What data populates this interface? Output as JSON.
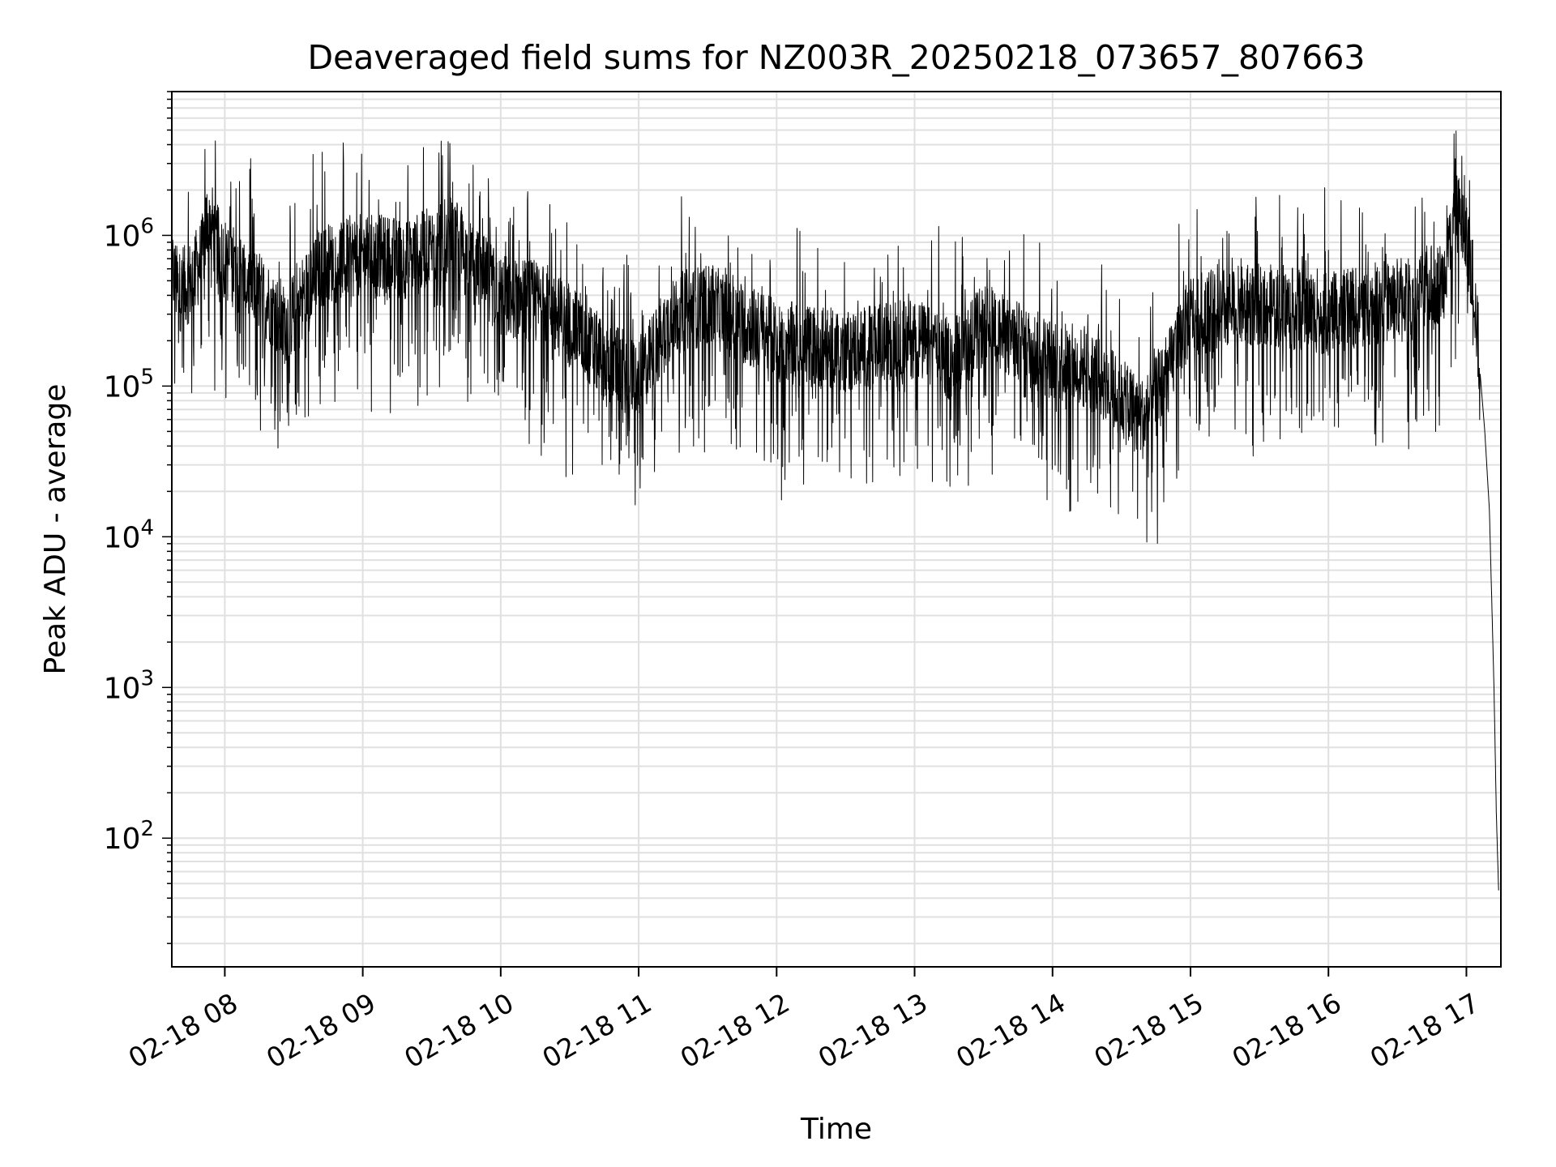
{
  "chart_data": {
    "type": "line",
    "title": "Deaveraged field sums for NZ003R_20250218_073657_807663",
    "xlabel": "Time",
    "ylabel": "Peak ADU - average",
    "yscale": "log",
    "ylim": [
      14,
      9000000
    ],
    "xlim": [
      "02-18 07:36:57",
      "02-18 17:15:00"
    ],
    "grid": true,
    "line_color": "#000000",
    "grid_color": "#e0e0e0",
    "x_ticks": [
      {
        "label": "02-18 08",
        "time": "02-18 08:00"
      },
      {
        "label": "02-18 09",
        "time": "02-18 09:00"
      },
      {
        "label": "02-18 10",
        "time": "02-18 10:00"
      },
      {
        "label": "02-18 11",
        "time": "02-18 11:00"
      },
      {
        "label": "02-18 12",
        "time": "02-18 12:00"
      },
      {
        "label": "02-18 13",
        "time": "02-18 13:00"
      },
      {
        "label": "02-18 14",
        "time": "02-18 14:00"
      },
      {
        "label": "02-18 15",
        "time": "02-18 15:00"
      },
      {
        "label": "02-18 16",
        "time": "02-18 16:00"
      },
      {
        "label": "02-18 17",
        "time": "02-18 17:00"
      }
    ],
    "y_ticks": [
      {
        "base": "10",
        "exp": "2",
        "value": 100
      },
      {
        "base": "10",
        "exp": "3",
        "value": 1000
      },
      {
        "base": "10",
        "exp": "4",
        "value": 10000
      },
      {
        "base": "10",
        "exp": "5",
        "value": 100000
      },
      {
        "base": "10",
        "exp": "6",
        "value": 1000000
      }
    ],
    "series": [
      {
        "x": [
          "02-18 07:36:57",
          "02-18 07:40",
          "02-18 07:45",
          "02-18 07:50",
          "02-18 07:53",
          "02-18 07:56",
          "02-18 08:00",
          "02-18 08:10",
          "02-18 08:20",
          "02-18 08:25",
          "02-18 08:30",
          "02-18 08:40",
          "02-18 08:50",
          "02-18 09:00",
          "02-18 09:20",
          "02-18 09:40",
          "02-18 09:45",
          "02-18 10:00",
          "02-18 10:20",
          "02-18 10:30",
          "02-18 10:45",
          "02-18 11:00",
          "02-18 11:15",
          "02-18 11:30",
          "02-18 12:00",
          "02-18 12:30",
          "02-18 13:00",
          "02-18 13:15",
          "02-18 13:30",
          "02-18 14:00",
          "02-18 14:20",
          "02-18 14:30",
          "02-18 14:40",
          "02-18 14:50",
          "02-18 15:00",
          "02-18 15:30",
          "02-18 16:00",
          "02-18 16:30",
          "02-18 16:50",
          "02-18 16:55",
          "02-18 16:58",
          "02-18 17:00",
          "02-18 17:03",
          "02-18 17:06",
          "02-18 17:08",
          "02-18 17:10",
          "02-18 17:12",
          "02-18 17:13",
          "02-18 17:14"
        ],
        "y": [
          600000,
          420000,
          500000,
          700000,
          1500000,
          900000,
          700000,
          500000,
          350000,
          250000,
          300000,
          600000,
          700000,
          750000,
          700000,
          1000000,
          700000,
          400000,
          350000,
          250000,
          150000,
          110000,
          300000,
          350000,
          200000,
          170000,
          210000,
          150000,
          250000,
          150000,
          120000,
          80000,
          60000,
          120000,
          300000,
          350000,
          300000,
          380000,
          500000,
          1500000,
          1200000,
          900000,
          500000,
          120000,
          50000,
          15000,
          1000,
          150,
          45
        ]
      }
    ]
  }
}
